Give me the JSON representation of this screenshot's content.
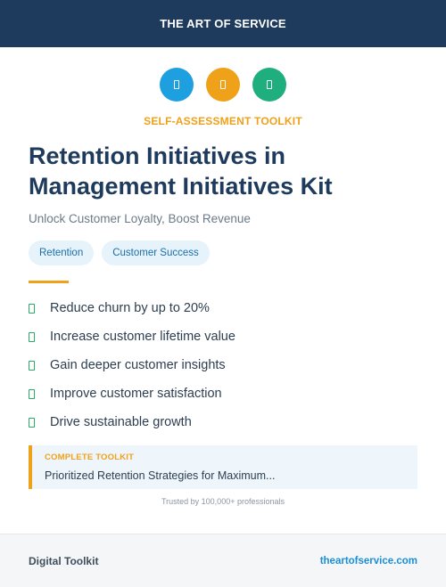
{
  "header": {
    "title": "THE ART OF SERVICE"
  },
  "icons": [
    {
      "name": "document-icon",
      "color": "#1ea0e0"
    },
    {
      "name": "document-icon",
      "color": "#f0a11a"
    },
    {
      "name": "document-icon",
      "color": "#1fae7e"
    }
  ],
  "kicker": "SELF-ASSESSMENT TOOLKIT",
  "title": "Retention Initiatives in Management Initiatives Kit",
  "subtitle": "Unlock Customer Loyalty, Boost Revenue",
  "tags": [
    "Retention",
    "Customer Success"
  ],
  "benefits": [
    "Reduce churn by up to 20%",
    "Increase customer lifetime value",
    "Gain deeper customer insights",
    "Improve customer satisfaction",
    "Drive sustainable growth"
  ],
  "callout": {
    "kicker": "COMPLETE TOOLKIT",
    "text": "Prioritized Retention Strategies for Maximum..."
  },
  "trusted": "Trusted by 100,000+ professionals",
  "footer": {
    "left": "Digital Toolkit",
    "right": "theartofservice.com"
  }
}
